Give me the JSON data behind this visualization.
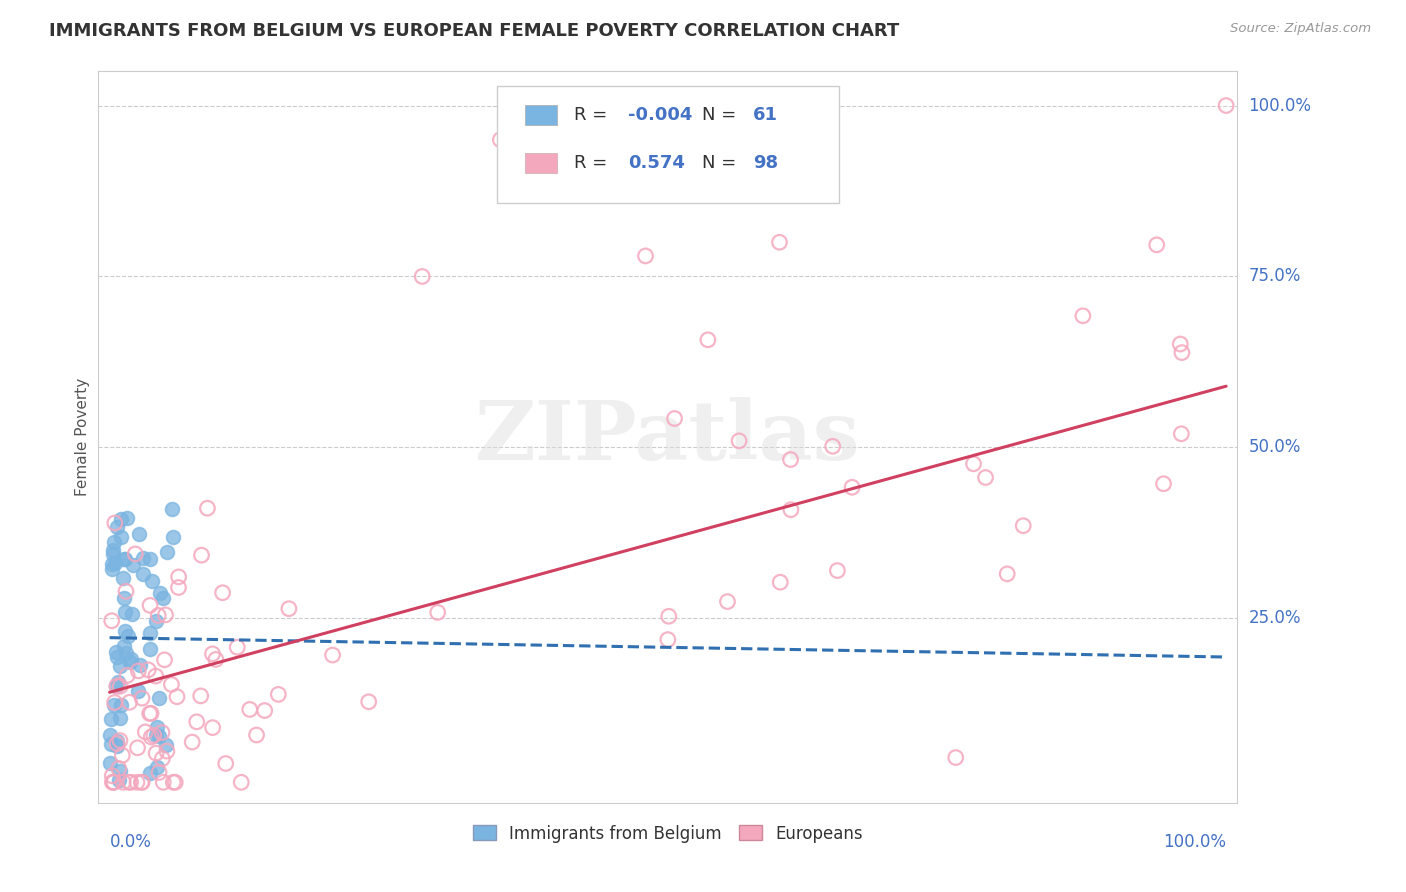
{
  "title": "IMMIGRANTS FROM BELGIUM VS EUROPEAN FEMALE POVERTY CORRELATION CHART",
  "source": "Source: ZipAtlas.com",
  "legend_label_blue": "Immigrants from Belgium",
  "legend_label_pink": "Europeans",
  "ylabel": "Female Poverty",
  "R_blue": -0.004,
  "N_blue": 61,
  "R_pink": 0.574,
  "N_pink": 98,
  "blue_scatter_color": "#7ab4e0",
  "pink_scatter_color": "#f4a8be",
  "blue_fill_color": "#7ab4e0",
  "pink_edge_color": "#f4a8be",
  "blue_line_color": "#3070b0",
  "pink_line_color": "#d04060",
  "axis_label_color": "#4472c4",
  "title_color": "#333333",
  "watermark": "ZIPatlas",
  "grid_color": "#cccccc",
  "legend_border_color": "#cccccc",
  "R_text_color": "#333333",
  "RN_value_color": "#4472c4"
}
